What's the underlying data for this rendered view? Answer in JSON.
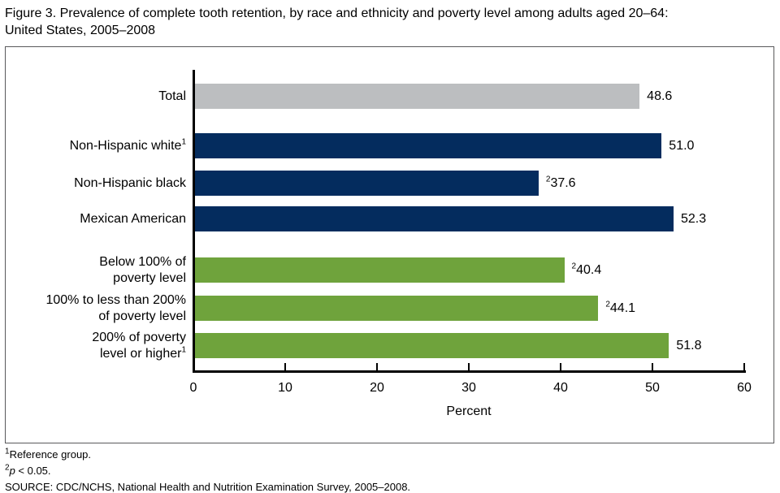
{
  "chart_data": {
    "type": "bar",
    "orientation": "horizontal",
    "title": "Figure 3. Prevalence of complete tooth retention, by race and ethnicity and poverty level among adults aged 20–64:\nUnited States, 2005–2008",
    "xlabel": "Percent",
    "xlim": [
      0,
      60
    ],
    "xticks": [
      0,
      10,
      20,
      30,
      40,
      50,
      60
    ],
    "grid": false,
    "legend": "none",
    "colors": {
      "total": "#bcbec0",
      "race_ethnicity": "#042c5e",
      "poverty_level": "#6fa33c"
    },
    "rows": [
      {
        "id": "total",
        "group": "total",
        "label_lines": [
          "Total"
        ],
        "label_sup": "",
        "value": 48.6,
        "value_text": "48.6",
        "value_sup": "",
        "color": "#bcbec0"
      },
      {
        "id": "non-hispanic-white",
        "group": "race and ethnicity",
        "label_lines": [
          "Non-Hispanic white"
        ],
        "label_sup": "1",
        "value": 51.0,
        "value_text": "51.0",
        "value_sup": "",
        "color": "#042c5e"
      },
      {
        "id": "non-hispanic-black",
        "group": "race and ethnicity",
        "label_lines": [
          "Non-Hispanic black"
        ],
        "label_sup": "",
        "value": 37.6,
        "value_text": "37.6",
        "value_sup": "2",
        "color": "#042c5e"
      },
      {
        "id": "mexican-american",
        "group": "race and ethnicity",
        "label_lines": [
          "Mexican American"
        ],
        "label_sup": "",
        "value": 52.3,
        "value_text": "52.3",
        "value_sup": "",
        "color": "#042c5e"
      },
      {
        "id": "below-100-poverty",
        "group": "poverty level",
        "label_lines": [
          "Below 100% of",
          "poverty level"
        ],
        "label_sup": "",
        "value": 40.4,
        "value_text": "40.4",
        "value_sup": "2",
        "color": "#6fa33c"
      },
      {
        "id": "100-to-200-poverty",
        "group": "poverty level",
        "label_lines": [
          "100% to less than 200%",
          "of poverty level"
        ],
        "label_sup": "",
        "value": 44.1,
        "value_text": "44.1",
        "value_sup": "2",
        "color": "#6fa33c"
      },
      {
        "id": "200-plus-poverty",
        "group": "poverty level",
        "label_lines": [
          "200% of poverty",
          "level or higher"
        ],
        "label_sup": "1",
        "value": 51.8,
        "value_text": "51.8",
        "value_sup": "",
        "color": "#6fa33c"
      }
    ]
  },
  "footnotes": {
    "ref_sup": "1",
    "ref_text": "Reference group.",
    "p_sup": "2",
    "p_italic": "p",
    "p_text": " < 0.05.",
    "source": "SOURCE: CDC/NCHS, National Health and Nutrition Examination Survey, 2005–2008."
  }
}
